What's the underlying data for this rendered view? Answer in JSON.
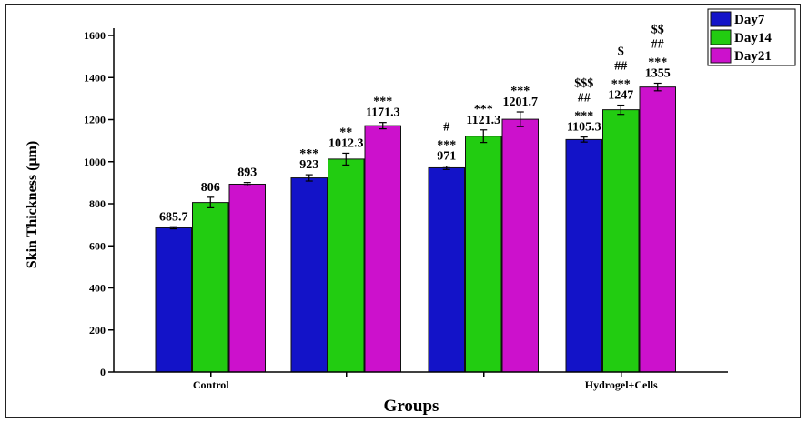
{
  "chart_data": {
    "type": "bar",
    "xlabel": "Groups",
    "ylabel": "Skin Thickness (μm)",
    "ylim": [
      0,
      1600
    ],
    "yticks": [
      0,
      200,
      400,
      600,
      800,
      1000,
      1200,
      1400,
      1600
    ],
    "grid": false,
    "legend_position": "top-right",
    "categories": [
      "Control",
      "",
      "",
      "Hydrogel+Cells"
    ],
    "series": [
      {
        "name": "Day7",
        "color": "#1313c8",
        "values": [
          685.7,
          923,
          971,
          1105.3
        ],
        "value_labels": [
          "685.7",
          "923",
          "971",
          "1105.3"
        ],
        "errors": [
          5,
          15,
          8,
          12
        ],
        "significance": [
          [],
          [
            "***"
          ],
          [
            "***",
            "#"
          ],
          [
            "***",
            "##",
            "$$$"
          ]
        ]
      },
      {
        "name": "Day14",
        "color": "#22cc11",
        "values": [
          806,
          1012.3,
          1121.3,
          1247
        ],
        "value_labels": [
          "806",
          "1012.3",
          "1121.3",
          "1247"
        ],
        "errors": [
          25,
          28,
          30,
          22
        ],
        "significance": [
          [],
          [
            "**"
          ],
          [
            "***"
          ],
          [
            "***",
            "##",
            "$"
          ]
        ]
      },
      {
        "name": "Day21",
        "color": "#cc11cc",
        "values": [
          893,
          1171.3,
          1201.7,
          1355
        ],
        "value_labels": [
          "893",
          "1171.3",
          "1201.7",
          "1355"
        ],
        "errors": [
          8,
          15,
          35,
          18
        ],
        "significance": [
          [],
          [
            "***"
          ],
          [
            "***"
          ],
          [
            "***",
            "##",
            "$$"
          ]
        ]
      }
    ]
  }
}
